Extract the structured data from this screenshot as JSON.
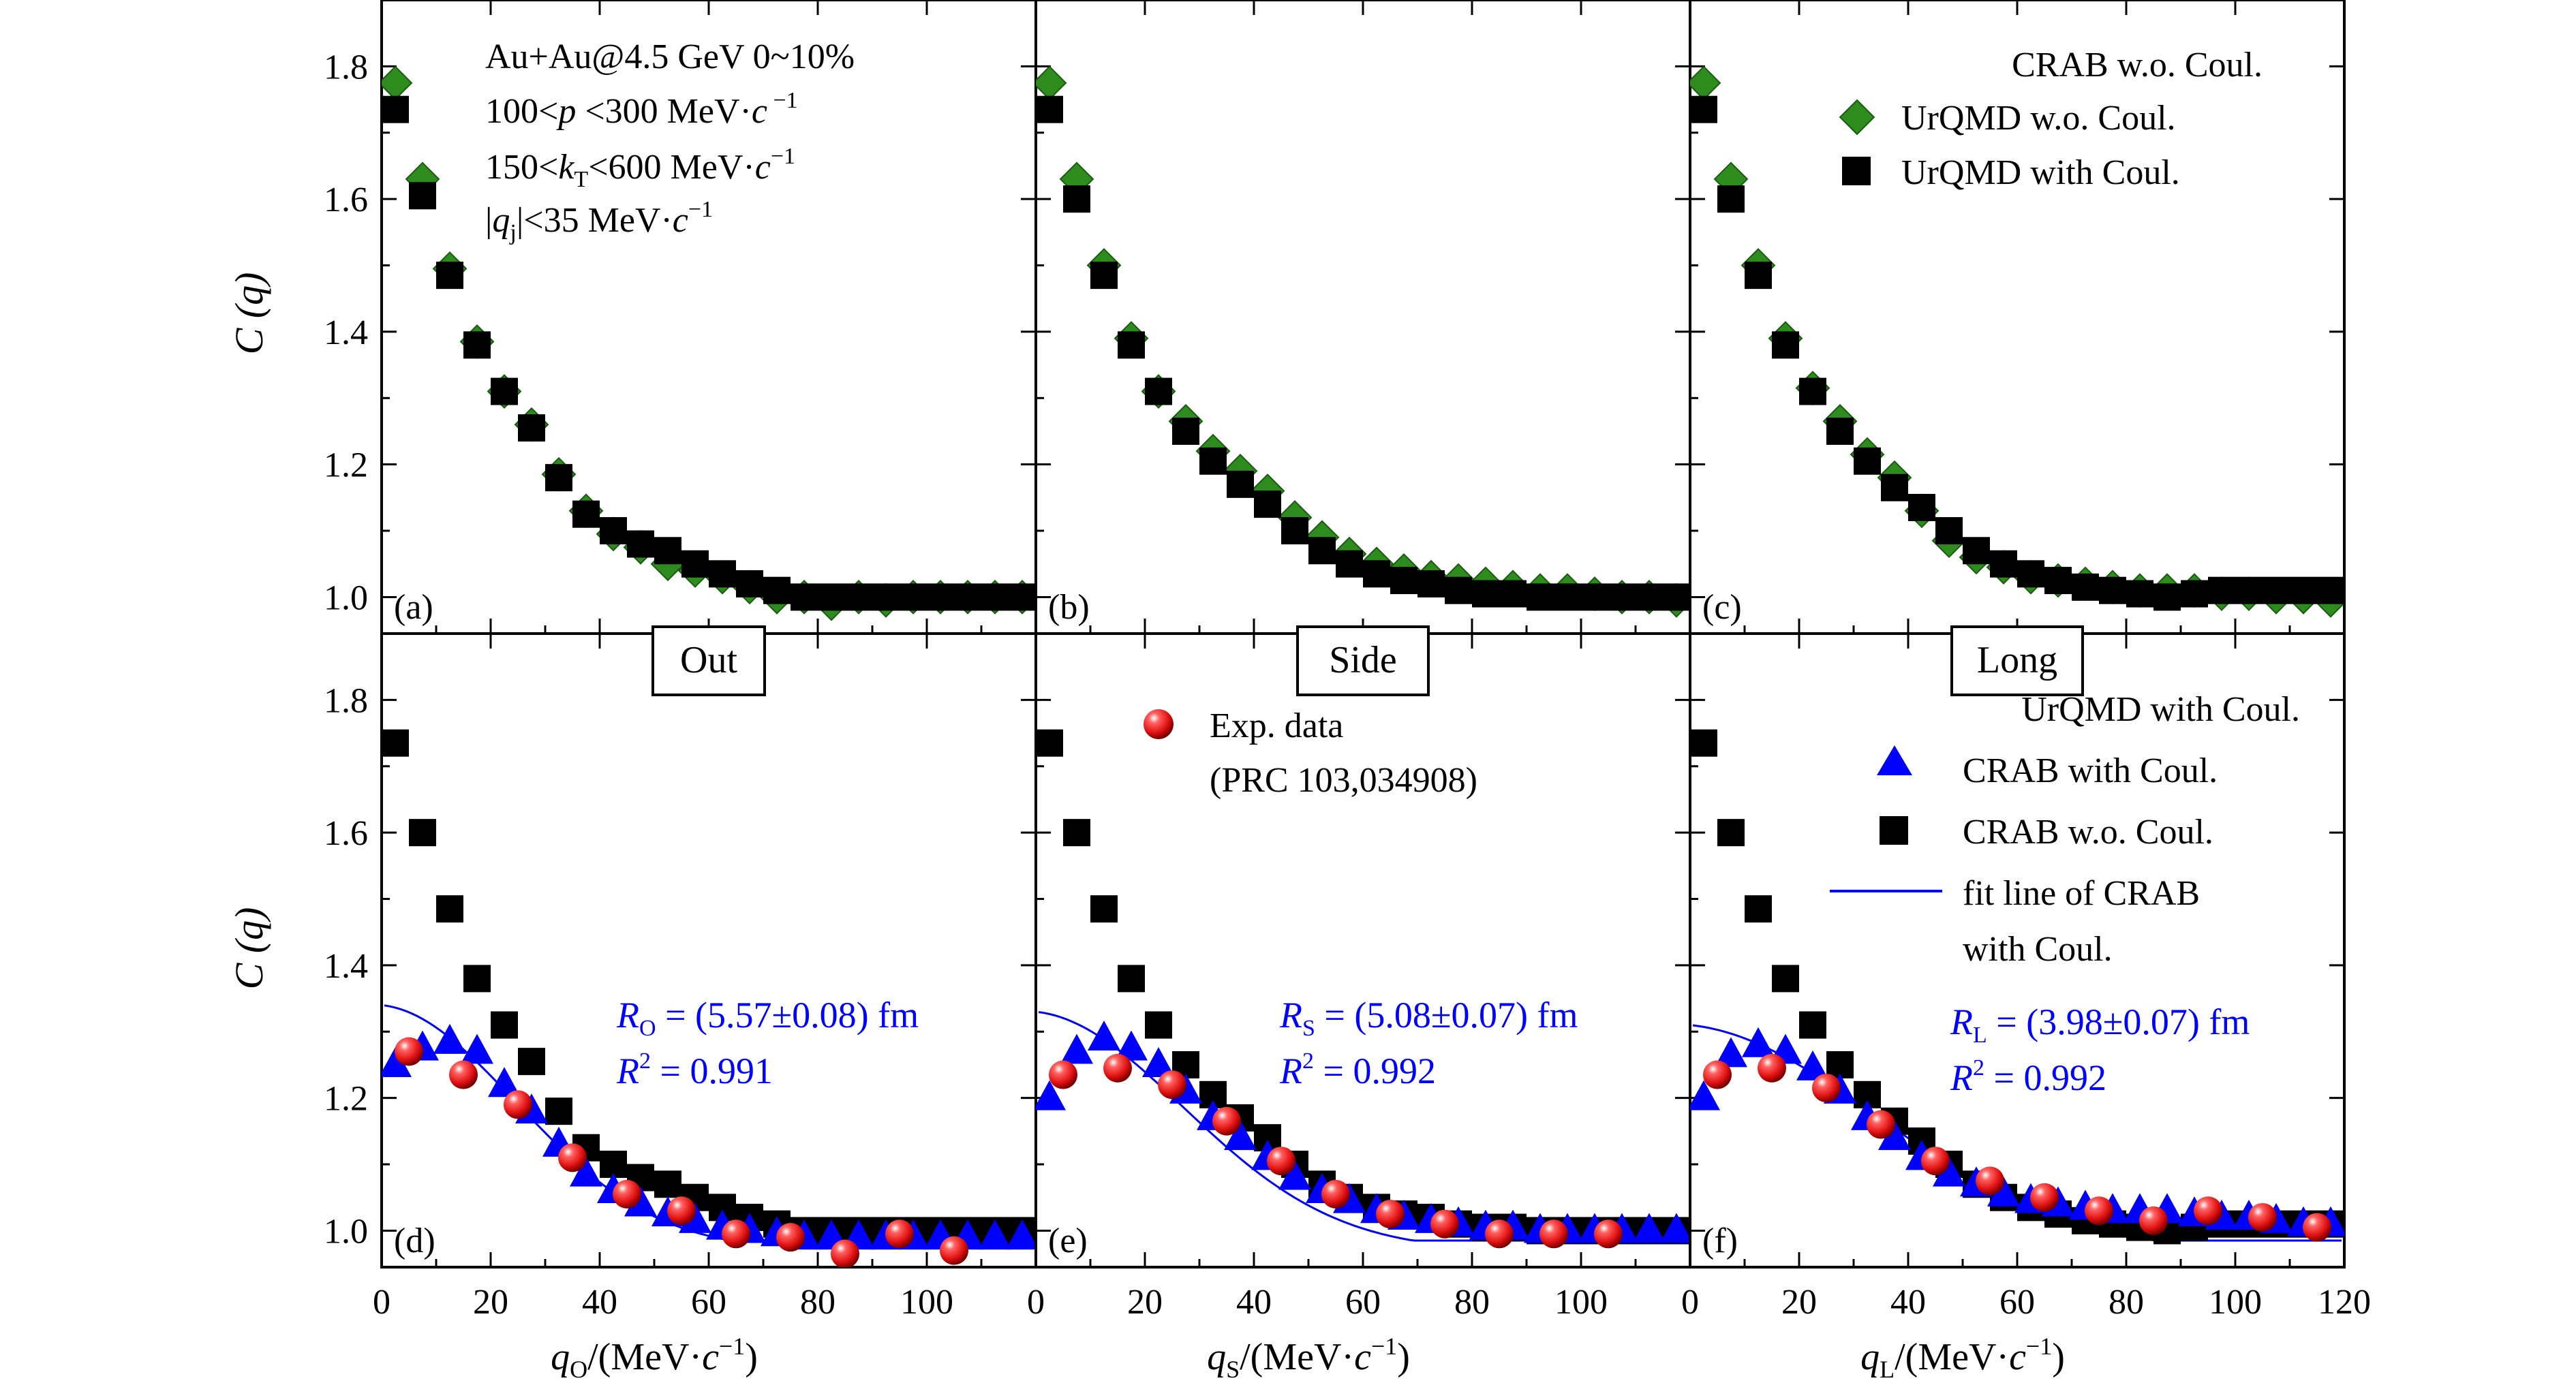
{
  "chart_data": {
    "type": "scatter",
    "layout": "2 rows x 3 columns, shared axes",
    "y_label": "C (q)",
    "y_ticks": [
      "1.0",
      "1.2",
      "1.4",
      "1.6",
      "1.8"
    ],
    "ylim": [
      0.945,
      1.9
    ],
    "x_ticks": [
      "0",
      "20",
      "40",
      "60",
      "80",
      "100",
      "120"
    ],
    "xlim": [
      0,
      120
    ],
    "colors": {
      "crab_wo": "#2e8b1e",
      "urqmd_with": "#000000",
      "exp": "#e01010",
      "crab_with": "#0000ff",
      "fit": "#0000ff"
    },
    "top_annotation": [
      "Au+Au@4.5 GeV  0~10%",
      "100<p<300 MeV·c⁻¹",
      "150<kT<600 MeV·c⁻¹",
      "|qj|<35 MeV·c⁻¹"
    ],
    "top_legend": [
      "CRAB w.o. Coul.",
      "UrQMD w.o. Coul.",
      "UrQMD with Coul."
    ],
    "bottom_legend": [
      "UrQMD with Coul.",
      "CRAB with Coul.",
      "CRAB w.o. Coul.",
      "fit line of CRAB",
      "with Coul."
    ],
    "exp_legend": [
      "Exp. data",
      "(PRC 103,034908)"
    ],
    "panels": [
      {
        "id": "a",
        "label": "(a)",
        "row": "top",
        "col": 0,
        "series": [
          {
            "name": "UrQMD w.o. Coul.",
            "marker": "diamond",
            "x": [
              2.5,
              7.5,
              12.5,
              17.5,
              22.5,
              27.5,
              32.5,
              37.5,
              42.5,
              47.5,
              52.5,
              57.5,
              62.5,
              67.5,
              72.5,
              77.5,
              82.5,
              87.5,
              92.5,
              97.5,
              102.5,
              107.5,
              112.5,
              117.5
            ],
            "y": [
              1.775,
              1.63,
              1.495,
              1.385,
              1.31,
              1.26,
              1.185,
              1.13,
              1.095,
              1.075,
              1.05,
              1.04,
              1.03,
              1.015,
              1.0,
              1.0,
              0.99,
              1.0,
              0.995,
              1.0,
              1.0,
              1.0,
              1.0,
              1.0
            ]
          },
          {
            "name": "UrQMD with Coul.",
            "marker": "square",
            "x": [
              2.5,
              7.5,
              12.5,
              17.5,
              22.5,
              27.5,
              32.5,
              37.5,
              42.5,
              47.5,
              52.5,
              57.5,
              62.5,
              67.5,
              72.5,
              77.5,
              82.5,
              87.5,
              92.5,
              97.5,
              102.5,
              107.5,
              112.5,
              117.5
            ],
            "y": [
              1.735,
              1.605,
              1.485,
              1.38,
              1.31,
              1.255,
              1.18,
              1.125,
              1.1,
              1.08,
              1.07,
              1.05,
              1.035,
              1.02,
              1.01,
              1.0,
              1.0,
              1.0,
              1.0,
              1.0,
              1.0,
              1.0,
              1.0,
              1.0
            ]
          }
        ]
      },
      {
        "id": "b",
        "label": "(b)",
        "row": "top",
        "col": 1,
        "series": [
          {
            "name": "UrQMD w.o. Coul.",
            "marker": "diamond",
            "x": [
              2.5,
              7.5,
              12.5,
              17.5,
              22.5,
              27.5,
              32.5,
              37.5,
              42.5,
              47.5,
              52.5,
              57.5,
              62.5,
              67.5,
              72.5,
              77.5,
              82.5,
              87.5,
              92.5,
              97.5,
              102.5,
              107.5,
              112.5,
              117.5
            ],
            "y": [
              1.775,
              1.63,
              1.5,
              1.39,
              1.31,
              1.265,
              1.22,
              1.19,
              1.16,
              1.12,
              1.09,
              1.065,
              1.05,
              1.04,
              1.03,
              1.025,
              1.02,
              1.015,
              1.01,
              1.01,
              1.005,
              1.0,
              1.0,
              0.995
            ]
          },
          {
            "name": "UrQMD with Coul.",
            "marker": "square",
            "x": [
              2.5,
              7.5,
              12.5,
              17.5,
              22.5,
              27.5,
              32.5,
              37.5,
              42.5,
              47.5,
              52.5,
              57.5,
              62.5,
              67.5,
              72.5,
              77.5,
              82.5,
              87.5,
              92.5,
              97.5,
              102.5,
              107.5,
              112.5,
              117.5
            ],
            "y": [
              1.735,
              1.6,
              1.485,
              1.38,
              1.31,
              1.25,
              1.205,
              1.17,
              1.14,
              1.1,
              1.07,
              1.05,
              1.035,
              1.025,
              1.02,
              1.01,
              1.005,
              1.005,
              1.0,
              1.0,
              1.0,
              1.0,
              1.0,
              1.0
            ]
          }
        ]
      },
      {
        "id": "c",
        "label": "(c)",
        "row": "top",
        "col": 2,
        "series": [
          {
            "name": "UrQMD w.o. Coul.",
            "marker": "diamond",
            "x": [
              2.5,
              7.5,
              12.5,
              17.5,
              22.5,
              27.5,
              32.5,
              37.5,
              42.5,
              47.5,
              52.5,
              57.5,
              62.5,
              67.5,
              72.5,
              77.5,
              82.5,
              87.5,
              92.5,
              97.5,
              102.5,
              107.5,
              112.5,
              117.5
            ],
            "y": [
              1.775,
              1.63,
              1.5,
              1.39,
              1.315,
              1.265,
              1.215,
              1.18,
              1.13,
              1.085,
              1.06,
              1.045,
              1.03,
              1.025,
              1.02,
              1.015,
              1.01,
              1.01,
              1.01,
              1.005,
              1.005,
              1.0,
              1.0,
              0.995
            ]
          },
          {
            "name": "UrQMD with Coul.",
            "marker": "square",
            "x": [
              2.5,
              7.5,
              12.5,
              17.5,
              22.5,
              27.5,
              32.5,
              37.5,
              42.5,
              47.5,
              52.5,
              57.5,
              62.5,
              67.5,
              72.5,
              77.5,
              82.5,
              87.5,
              92.5,
              97.5,
              102.5,
              107.5,
              112.5,
              117.5
            ],
            "y": [
              1.735,
              1.6,
              1.485,
              1.38,
              1.31,
              1.25,
              1.205,
              1.165,
              1.135,
              1.1,
              1.07,
              1.05,
              1.035,
              1.025,
              1.015,
              1.01,
              1.005,
              1.0,
              1.005,
              1.01,
              1.01,
              1.01,
              1.01,
              1.01
            ]
          }
        ]
      },
      {
        "id": "d",
        "label": "(d)",
        "row": "bottom",
        "col": 0,
        "title": "Out",
        "fit_text": [
          "RO = (5.57±0.08) fm",
          "R² = 0.991"
        ],
        "fit": {
          "lambda": 0.34,
          "R_fm": 5.57
        },
        "series": [
          {
            "name": "CRAB w.o. Coul.",
            "marker": "square",
            "x": [
              2.5,
              7.5,
              12.5,
              17.5,
              22.5,
              27.5,
              32.5,
              37.5,
              42.5,
              47.5,
              52.5,
              57.5,
              62.5,
              67.5,
              72.5,
              77.5,
              82.5,
              87.5,
              92.5,
              97.5,
              102.5,
              107.5,
              112.5,
              117.5
            ],
            "y": [
              1.735,
              1.6,
              1.485,
              1.38,
              1.31,
              1.255,
              1.18,
              1.125,
              1.1,
              1.08,
              1.07,
              1.05,
              1.035,
              1.02,
              1.01,
              1.0,
              1.0,
              1.0,
              1.0,
              1.0,
              1.0,
              1.0,
              1.0,
              1.0
            ]
          },
          {
            "name": "CRAB with Coul.",
            "marker": "triangle",
            "x": [
              2.5,
              7.5,
              12.5,
              17.5,
              22.5,
              27.5,
              32.5,
              37.5,
              42.5,
              47.5,
              52.5,
              57.5,
              62.5,
              67.5,
              72.5,
              77.5,
              82.5,
              87.5,
              92.5,
              97.5,
              102.5,
              107.5,
              112.5,
              117.5
            ],
            "y": [
              1.25,
              1.275,
              1.285,
              1.27,
              1.22,
              1.18,
              1.13,
              1.085,
              1.06,
              1.04,
              1.025,
              1.015,
              1.005,
              1.0,
              0.995,
              0.99,
              0.99,
              0.99,
              0.99,
              0.99,
              0.99,
              0.99,
              0.99,
              0.99
            ]
          },
          {
            "name": "Exp. data",
            "marker": "sphere",
            "x": [
              5,
              15,
              25,
              35,
              45,
              55,
              65,
              75,
              85,
              95,
              105
            ],
            "y": [
              1.27,
              1.235,
              1.19,
              1.11,
              1.055,
              1.03,
              0.995,
              0.99,
              0.965,
              0.995,
              0.97
            ]
          }
        ]
      },
      {
        "id": "e",
        "label": "(e)",
        "row": "bottom",
        "col": 1,
        "title": "Side",
        "fit_text": [
          "RS = (5.08±0.07) fm",
          "R² = 0.992"
        ],
        "fit": {
          "lambda": 0.33,
          "R_fm": 5.08
        },
        "series": [
          {
            "name": "CRAB w.o. Coul.",
            "marker": "square",
            "x": [
              2.5,
              7.5,
              12.5,
              17.5,
              22.5,
              27.5,
              32.5,
              37.5,
              42.5,
              47.5,
              52.5,
              57.5,
              62.5,
              67.5,
              72.5,
              77.5,
              82.5,
              87.5,
              92.5,
              97.5,
              102.5,
              107.5,
              112.5,
              117.5
            ],
            "y": [
              1.735,
              1.6,
              1.485,
              1.38,
              1.31,
              1.25,
              1.205,
              1.17,
              1.14,
              1.1,
              1.07,
              1.05,
              1.035,
              1.025,
              1.02,
              1.01,
              1.005,
              1.005,
              1.0,
              1.0,
              1.0,
              1.0,
              1.0,
              1.0
            ]
          },
          {
            "name": "CRAB with Coul.",
            "marker": "triangle",
            "x": [
              2.5,
              7.5,
              12.5,
              17.5,
              22.5,
              27.5,
              32.5,
              37.5,
              42.5,
              47.5,
              52.5,
              57.5,
              62.5,
              67.5,
              72.5,
              77.5,
              82.5,
              87.5,
              92.5,
              97.5,
              102.5,
              107.5,
              112.5,
              117.5
            ],
            "y": [
              1.2,
              1.27,
              1.29,
              1.275,
              1.25,
              1.21,
              1.17,
              1.14,
              1.11,
              1.08,
              1.06,
              1.045,
              1.03,
              1.02,
              1.015,
              1.01,
              1.005,
              1.005,
              1.0,
              1.0,
              1.0,
              1.0,
              1.0,
              1.0
            ]
          },
          {
            "name": "Exp. data",
            "marker": "sphere",
            "x": [
              5,
              15,
              25,
              35,
              45,
              55,
              65,
              75,
              85,
              95,
              105
            ],
            "y": [
              1.235,
              1.245,
              1.22,
              1.165,
              1.105,
              1.055,
              1.025,
              1.01,
              0.995,
              0.995,
              0.995
            ]
          }
        ]
      },
      {
        "id": "f",
        "label": "(f)",
        "row": "bottom",
        "col": 2,
        "title": "Long",
        "fit_text": [
          "RL = (3.98±0.07) fm",
          "R² = 0.992"
        ],
        "fit": {
          "lambda": 0.31,
          "R_fm": 3.98
        },
        "series": [
          {
            "name": "CRAB w.o. Coul.",
            "marker": "square",
            "x": [
              2.5,
              7.5,
              12.5,
              17.5,
              22.5,
              27.5,
              32.5,
              37.5,
              42.5,
              47.5,
              52.5,
              57.5,
              62.5,
              67.5,
              72.5,
              77.5,
              82.5,
              87.5,
              92.5,
              97.5,
              102.5,
              107.5,
              112.5,
              117.5
            ],
            "y": [
              1.735,
              1.6,
              1.485,
              1.38,
              1.31,
              1.25,
              1.205,
              1.165,
              1.135,
              1.1,
              1.07,
              1.05,
              1.035,
              1.025,
              1.015,
              1.01,
              1.005,
              1.0,
              1.005,
              1.01,
              1.01,
              1.01,
              1.01,
              1.01
            ]
          },
          {
            "name": "CRAB with Coul.",
            "marker": "triangle",
            "x": [
              2.5,
              7.5,
              12.5,
              17.5,
              22.5,
              27.5,
              32.5,
              37.5,
              42.5,
              47.5,
              52.5,
              57.5,
              62.5,
              67.5,
              72.5,
              77.5,
              82.5,
              87.5,
              92.5,
              97.5,
              102.5,
              107.5,
              112.5,
              117.5
            ],
            "y": [
              1.2,
              1.265,
              1.28,
              1.27,
              1.245,
              1.21,
              1.17,
              1.14,
              1.11,
              1.085,
              1.07,
              1.055,
              1.045,
              1.04,
              1.035,
              1.03,
              1.03,
              1.03,
              1.025,
              1.02,
              1.02,
              1.015,
              1.01,
              1.01
            ]
          },
          {
            "name": "Exp. data",
            "marker": "sphere",
            "x": [
              5,
              15,
              25,
              35,
              45,
              55,
              65,
              75,
              85,
              95,
              105,
              115
            ],
            "y": [
              1.235,
              1.245,
              1.215,
              1.16,
              1.105,
              1.075,
              1.05,
              1.03,
              1.015,
              1.03,
              1.02,
              1.005
            ]
          }
        ]
      }
    ],
    "x_labels": [
      "qO/(MeV·c⁻¹)",
      "qS/(MeV·c⁻¹)",
      "qL/(MeV·c⁻¹)"
    ]
  }
}
